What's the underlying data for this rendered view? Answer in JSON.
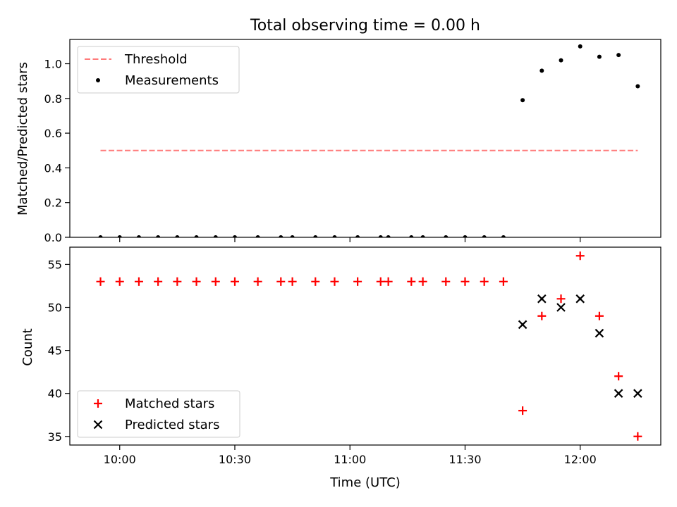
{
  "figure_title": "Total observing time = 0.00 h",
  "colors": {
    "threshold": "#ff7b7b",
    "measurement": "#000000",
    "matched": "#ff0000",
    "predicted": "#000000"
  },
  "chart_data": [
    {
      "type": "scatter",
      "title": "Total observing time = 0.00 h",
      "ylabel": "Matched/Predicted stars",
      "xlabel": "",
      "xlim": [
        "09:47",
        "12:21"
      ],
      "ylim": [
        0,
        1.14
      ],
      "yticks": [
        "0.0",
        "0.2",
        "0.4",
        "0.6",
        "0.8",
        "1.0"
      ],
      "legend_position": "top-left",
      "legend": [
        "Threshold",
        "Measurements"
      ],
      "series": [
        {
          "name": "Threshold",
          "kind": "dashed-line",
          "color": "#ff7b7b",
          "x": [
            "09:55",
            "12:15"
          ],
          "y": [
            0.5,
            0.5
          ]
        },
        {
          "name": "Measurements",
          "kind": "dot",
          "color": "#000000",
          "x": [
            "09:55",
            "10:00",
            "10:05",
            "10:10",
            "10:15",
            "10:20",
            "10:25",
            "10:30",
            "10:36",
            "10:42",
            "10:45",
            "10:51",
            "10:56",
            "11:02",
            "11:08",
            "11:10",
            "11:16",
            "11:19",
            "11:25",
            "11:30",
            "11:35",
            "11:40",
            "11:45",
            "11:50",
            "11:55",
            "12:00",
            "12:05",
            "12:10",
            "12:15"
          ],
          "y": [
            0,
            0,
            0,
            0,
            0,
            0,
            0,
            0,
            0,
            0,
            0,
            0,
            0,
            0,
            0,
            0,
            0,
            0,
            0,
            0,
            0,
            0,
            0.79,
            0.96,
            1.02,
            1.1,
            1.04,
            1.05,
            0.87
          ]
        }
      ]
    },
    {
      "type": "scatter",
      "ylabel": "Count",
      "xlabel": "Time (UTC)",
      "xlim": [
        "09:47",
        "12:21"
      ],
      "ylim": [
        34,
        57
      ],
      "xticks": [
        "10:00",
        "10:30",
        "11:00",
        "11:30",
        "12:00"
      ],
      "yticks": [
        "35",
        "40",
        "45",
        "50",
        "55"
      ],
      "legend_position": "bottom-left",
      "legend": [
        "Matched stars",
        "Predicted stars"
      ],
      "series": [
        {
          "name": "Matched stars",
          "kind": "plus",
          "color": "#ff0000",
          "x": [
            "09:55",
            "10:00",
            "10:05",
            "10:10",
            "10:15",
            "10:20",
            "10:25",
            "10:30",
            "10:36",
            "10:42",
            "10:45",
            "10:51",
            "10:56",
            "11:02",
            "11:08",
            "11:10",
            "11:16",
            "11:19",
            "11:25",
            "11:30",
            "11:35",
            "11:40",
            "11:45",
            "11:50",
            "11:55",
            "12:00",
            "12:05",
            "12:10",
            "12:15"
          ],
          "y": [
            53,
            53,
            53,
            53,
            53,
            53,
            53,
            53,
            53,
            53,
            53,
            53,
            53,
            53,
            53,
            53,
            53,
            53,
            53,
            53,
            53,
            53,
            38,
            49,
            51,
            56,
            49,
            42,
            35
          ]
        },
        {
          "name": "Predicted stars",
          "kind": "cross",
          "color": "#000000",
          "x": [
            "11:45",
            "11:50",
            "11:55",
            "12:00",
            "12:05",
            "12:10",
            "12:15"
          ],
          "y": [
            48,
            51,
            50,
            51,
            47,
            40,
            40
          ]
        }
      ]
    }
  ]
}
